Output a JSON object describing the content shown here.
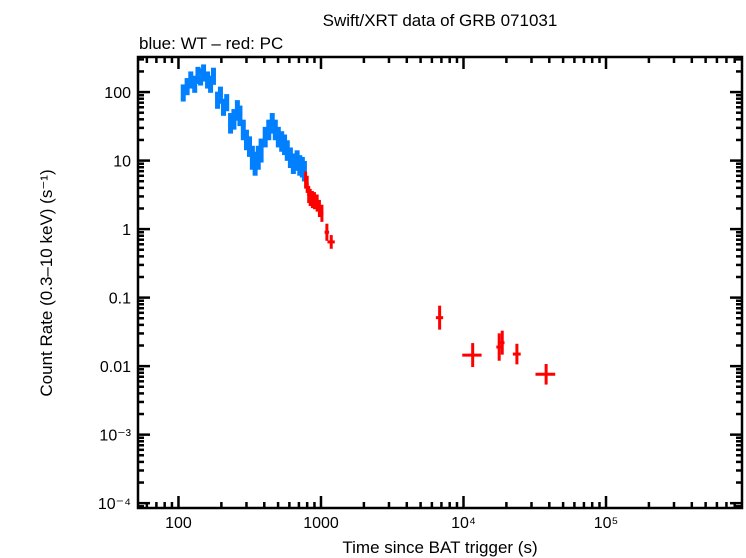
{
  "chart_data": {
    "type": "scatter",
    "title": "Swift/XRT data of GRB 071031",
    "subtitle": "blue: WT – red: PC",
    "xlabel": "Time since BAT trigger (s)",
    "ylabel": "Count Rate (0.3–10 keV) (s⁻¹)",
    "xscale": "log",
    "yscale": "log",
    "xlim": [
      52,
      900000
    ],
    "ylim": [
      8.5e-05,
      325
    ],
    "grid": false,
    "x_ticks": [
      {
        "value": 100,
        "label": "100"
      },
      {
        "value": 1000,
        "label": "1000"
      },
      {
        "value": 10000,
        "label": "10⁴"
      },
      {
        "value": 100000,
        "label": "10⁵"
      }
    ],
    "y_ticks": [
      {
        "value": 100,
        "label": "100"
      },
      {
        "value": 10,
        "label": "10"
      },
      {
        "value": 1,
        "label": "1"
      },
      {
        "value": 0.1,
        "label": "0.1"
      },
      {
        "value": 0.01,
        "label": "0.01"
      },
      {
        "value": 0.001,
        "label": "10⁻³"
      },
      {
        "value": 0.0001,
        "label": "10⁻⁴"
      }
    ],
    "series": [
      {
        "name": "WT",
        "color": "#0080ff",
        "points": [
          [
            108,
            97,
            0.25
          ],
          [
            115,
            120,
            0.25
          ],
          [
            122,
            150,
            0.25
          ],
          [
            130,
            130,
            0.25
          ],
          [
            137,
            175,
            0.25
          ],
          [
            143,
            166,
            0.25
          ],
          [
            150,
            190,
            0.25
          ],
          [
            160,
            150,
            0.25
          ],
          [
            168,
            130,
            0.25
          ],
          [
            176,
            170,
            0.25
          ],
          [
            188,
            76,
            0.25
          ],
          [
            197,
            90,
            0.25
          ],
          [
            207,
            60,
            0.25
          ],
          [
            218,
            70,
            0.25
          ],
          [
            232,
            35,
            0.3
          ],
          [
            245,
            40,
            0.3
          ],
          [
            259,
            54,
            0.3
          ],
          [
            270,
            45,
            0.3
          ],
          [
            285,
            28,
            0.3
          ],
          [
            300,
            20,
            0.3
          ],
          [
            315,
            16,
            0.3
          ],
          [
            330,
            11,
            0.35
          ],
          [
            345,
            9,
            0.35
          ],
          [
            363,
            11,
            0.35
          ],
          [
            380,
            14,
            0.35
          ],
          [
            406,
            22,
            0.3
          ],
          [
            430,
            28,
            0.3
          ],
          [
            455,
            35,
            0.3
          ],
          [
            478,
            28,
            0.3
          ],
          [
            502,
            22,
            0.3
          ],
          [
            530,
            19,
            0.3
          ],
          [
            555,
            17,
            0.3
          ],
          [
            580,
            14,
            0.3
          ],
          [
            610,
            11,
            0.3
          ],
          [
            640,
            9,
            0.3
          ],
          [
            680,
            10,
            0.3
          ],
          [
            710,
            8.5,
            0.3
          ],
          [
            740,
            8,
            0.3
          ],
          [
            765,
            7,
            0.3
          ]
        ]
      },
      {
        "name": "PC",
        "color": "#ff0000",
        "points": [
          [
            780,
            5.2,
            0.25,
            20
          ],
          [
            800,
            4.5,
            0.25,
            20
          ],
          [
            820,
            3.2,
            0.25,
            20
          ],
          [
            840,
            2.9,
            0.25,
            20
          ],
          [
            870,
            2.7,
            0.25,
            20
          ],
          [
            900,
            2.6,
            0.25,
            20
          ],
          [
            940,
            2.4,
            0.25,
            25
          ],
          [
            975,
            2.0,
            0.25,
            25
          ],
          [
            1015,
            1.7,
            0.25,
            25
          ],
          [
            1100,
            0.9,
            0.25,
            40
          ],
          [
            1180,
            0.65,
            0.2,
            70
          ],
          [
            6800,
            0.051,
            0.35,
            400
          ],
          [
            11600,
            0.0145,
            0.35,
            1800
          ],
          [
            17800,
            0.019,
            0.4,
            800
          ],
          [
            18700,
            0.022,
            0.35,
            700
          ],
          [
            23700,
            0.015,
            0.3,
            1500
          ],
          [
            38000,
            0.0076,
            0.3,
            6000
          ]
        ]
      }
    ]
  }
}
